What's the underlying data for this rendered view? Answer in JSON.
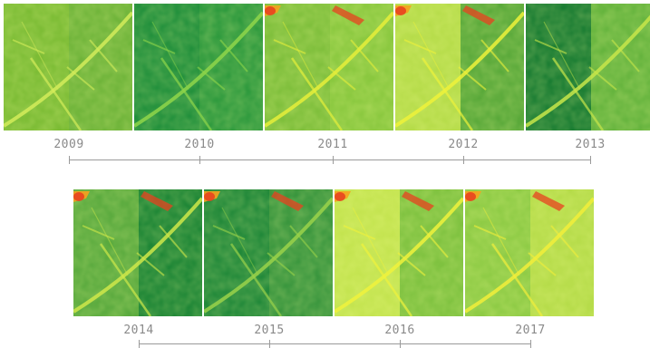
{
  "rows": [
    {
      "years": [
        "2009",
        "2010",
        "2011",
        "2012",
        "2013"
      ],
      "tiles": [
        {
          "year": "2009",
          "base": "#8cc63f",
          "left": "#7cbc35",
          "right": "#6fb43a",
          "accent": "#d4ec5a",
          "hot": false
        },
        {
          "year": "2010",
          "base": "#1f8a3a",
          "left": "#22903c",
          "right": "#2f9a3e",
          "accent": "#8fd64a",
          "hot": false
        },
        {
          "year": "2011",
          "base": "#86c440",
          "left": "#7fbf3c",
          "right": "#8ac83f",
          "accent": "#e6ef3a",
          "hot": true
        },
        {
          "year": "2012",
          "base": "#a6d444",
          "left": "#b6dc4a",
          "right": "#5aa93a",
          "accent": "#eef23a",
          "hot": true
        },
        {
          "year": "2013",
          "base": "#2e8f3a",
          "left": "#1b7d33",
          "right": "#66b43e",
          "accent": "#c8e64a",
          "hot": false
        }
      ]
    },
    {
      "years": [
        "2014",
        "2015",
        "2016",
        "2017"
      ],
      "tiles": [
        {
          "year": "2014",
          "base": "#4ea23c",
          "left": "#5aaa3e",
          "right": "#1e8636",
          "accent": "#cfe84a",
          "hot": true
        },
        {
          "year": "2015",
          "base": "#1f8a38",
          "left": "#22893a",
          "right": "#3a963e",
          "accent": "#9ad24a",
          "hot": true
        },
        {
          "year": "2016",
          "base": "#b9e04c",
          "left": "#c4e450",
          "right": "#7fc240",
          "accent": "#f0f23c",
          "hot": true
        },
        {
          "year": "2017",
          "base": "#9ed247",
          "left": "#8ecb45",
          "right": "#b6dc4a",
          "accent": "#f2ee3a",
          "hot": true
        }
      ]
    }
  ],
  "colors": {
    "axis": "#9a9a9a",
    "label": "#8a8a8a",
    "hot": "#e8421f",
    "warm": "#f6a21e"
  }
}
